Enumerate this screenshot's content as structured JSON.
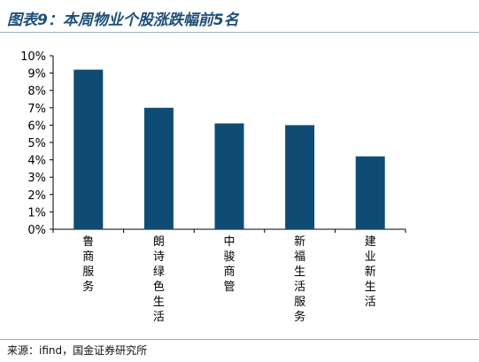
{
  "header": {
    "title": "图表9：本周物业个股涨跌幅前5名"
  },
  "footer": {
    "source": "来源：ifind，国金证券研究所"
  },
  "colors": {
    "bar": "#0f4c73",
    "title": "#1f4e79",
    "axis": "#000000"
  },
  "chart_data": {
    "type": "bar",
    "title": "",
    "xlabel": "",
    "ylabel": "",
    "categories": [
      "鲁商服务",
      "朗诗绿色生活",
      "中骏商管",
      "新福生活服务",
      "建业新生活"
    ],
    "values": [
      9.2,
      7.0,
      6.1,
      6.0,
      4.2
    ],
    "ylim": [
      0,
      10
    ],
    "yticks": [
      "0%",
      "1%",
      "2%",
      "3%",
      "4%",
      "5%",
      "6%",
      "7%",
      "8%",
      "9%",
      "10%"
    ],
    "grid": false,
    "legend": "none"
  }
}
